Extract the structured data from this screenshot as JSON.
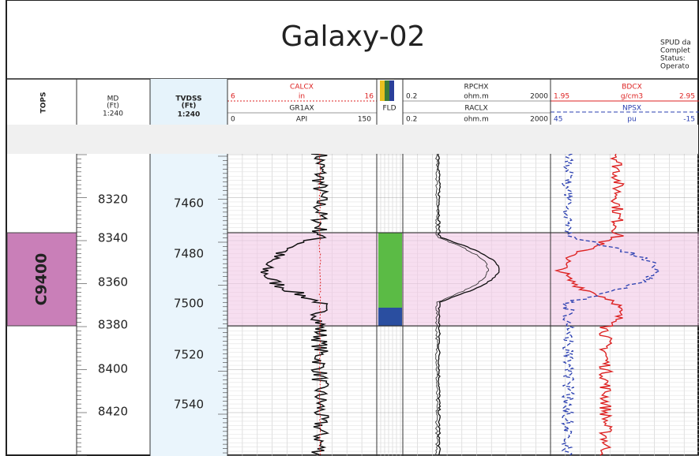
{
  "header": {
    "title": "Galaxy-02",
    "info": [
      "SPUD da",
      "Complet",
      "Status:",
      "Operato"
    ]
  },
  "columns": {
    "tops": "TOPS",
    "md": {
      "name": "MD",
      "unit": "(Ft)",
      "scale": "1:240"
    },
    "tvdss": {
      "name": "TVDSS",
      "unit": "(Ft)",
      "scale": "1:240"
    },
    "calcx": {
      "name": "CALCX",
      "min": "6",
      "unit": "in",
      "max": "16"
    },
    "gr1ax": {
      "name": "GR1AX",
      "min": "0",
      "unit": "API",
      "max": "150"
    },
    "fld": "FLD",
    "rpchx": {
      "name": "RPCHX",
      "min": "0.2",
      "unit": "ohm.m",
      "max": "2000"
    },
    "raclx": {
      "name": "RACLX",
      "min": "0.2",
      "unit": "ohm.m",
      "max": "2000"
    },
    "bdcx": {
      "name": "BDCX",
      "min": "1.95",
      "unit": "g/cm3",
      "max": "2.95"
    },
    "npsx": {
      "name": "NPSX",
      "min": "45",
      "unit": "pu",
      "max": "-15"
    }
  },
  "md_depths": [
    "8320",
    "8340",
    "8360",
    "8380",
    "8400",
    "8420"
  ],
  "tvdss_depths": [
    "7460",
    "7480",
    "7500",
    "7520",
    "7540"
  ],
  "top": "C9400"
}
